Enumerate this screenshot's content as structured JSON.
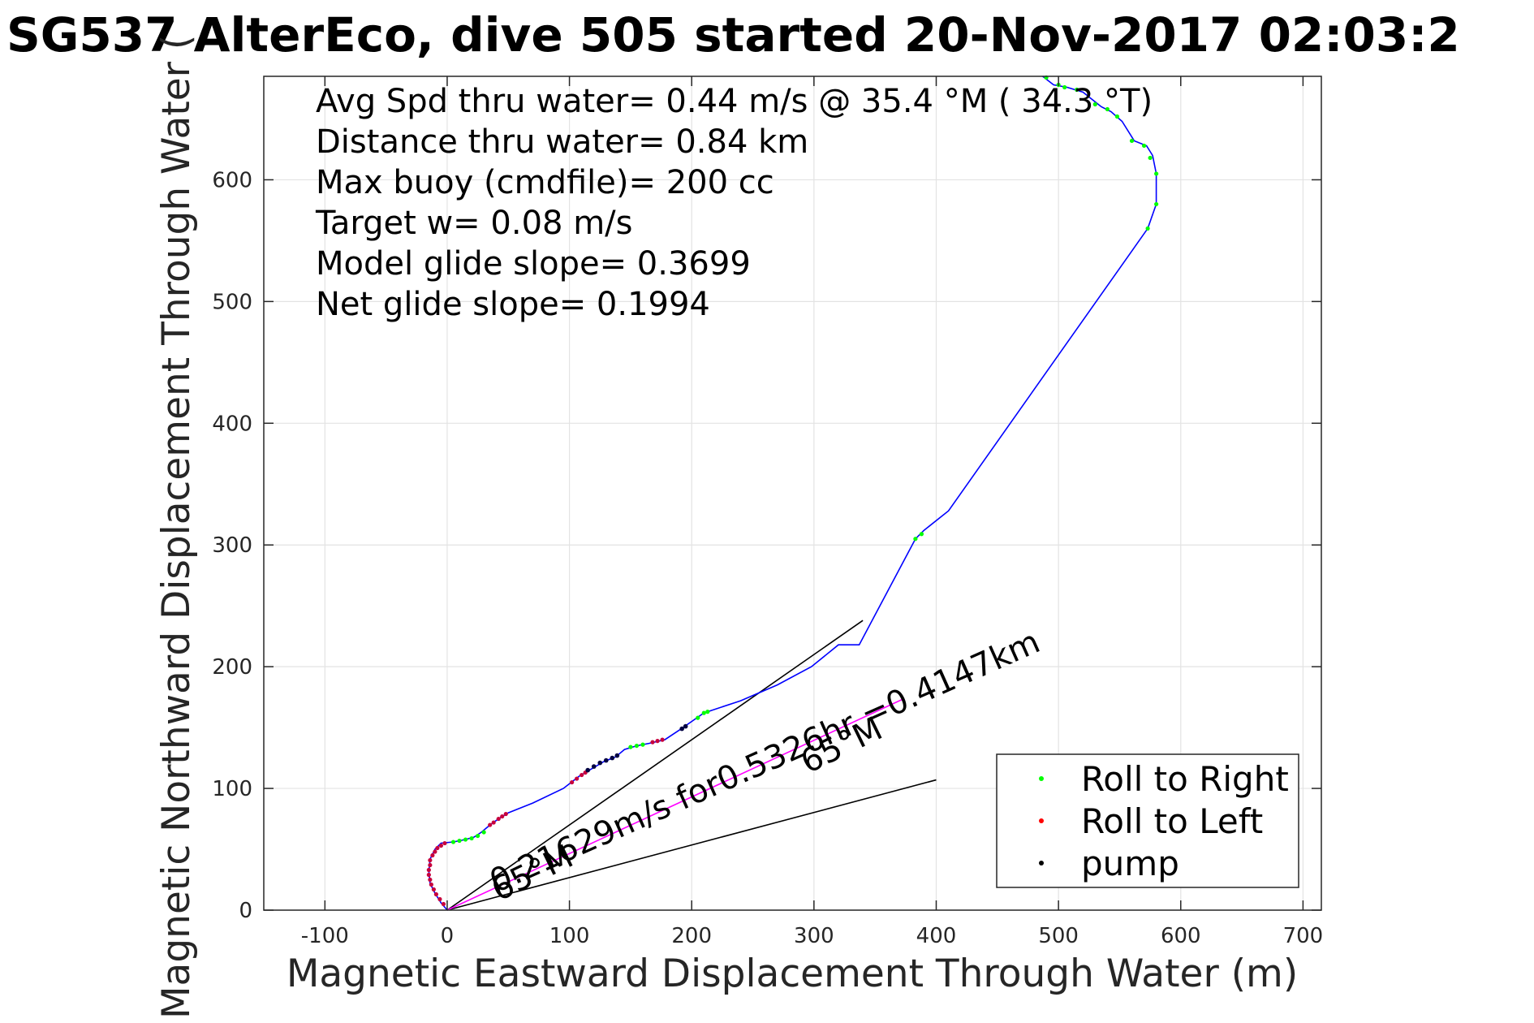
{
  "chart_data": {
    "type": "line",
    "title": "SG537 AlterEco, dive 505 started 20-Nov-2017 02:03:2",
    "xlabel": "Magnetic Eastward Displacement Through Water (m)",
    "ylabel": "Magnetic Northward Displacement Through Water (",
    "xlim": [
      -150,
      715
    ],
    "ylim": [
      0,
      685
    ],
    "x_ticks": [
      -100,
      0,
      100,
      200,
      300,
      400,
      500,
      600,
      700
    ],
    "y_ticks": [
      0,
      100,
      200,
      300,
      400,
      500,
      600
    ],
    "x_tick_labels": [
      "-100",
      "0",
      "100",
      "200",
      "300",
      "400",
      "500",
      "600",
      "700"
    ],
    "y_tick_labels": [
      "0",
      "100",
      "200",
      "300",
      "400",
      "500",
      "600"
    ],
    "grid": true,
    "legend_position": "bottom-right",
    "info_lines": [
      "Avg Spd thru water=  0.44 m/s @  35.4 °M ( 34.3 °T)",
      "Distance thru water=  0.84 km",
      "Max buoy (cmdfile)= 200 cc",
      "Target w= 0.08 m/s",
      "Model glide slope= 0.3699",
      "Net glide slope= 0.1994"
    ],
    "legend": [
      {
        "label": "Roll to Right",
        "color": "#00ff00"
      },
      {
        "label": "Roll to Left",
        "color": "#ff0000"
      },
      {
        "label": "pump",
        "color": "#000000"
      }
    ],
    "track": {
      "color": "#0000ff",
      "points": [
        [
          0,
          0
        ],
        [
          -5,
          6
        ],
        [
          -10,
          14
        ],
        [
          -14,
          22
        ],
        [
          -15,
          32
        ],
        [
          -14,
          42
        ],
        [
          -10,
          50
        ],
        [
          -5,
          55
        ],
        [
          5,
          56
        ],
        [
          15,
          58
        ],
        [
          22,
          60
        ],
        [
          28,
          64
        ],
        [
          35,
          70
        ],
        [
          42,
          75
        ],
        [
          50,
          80
        ],
        [
          70,
          88
        ],
        [
          95,
          100
        ],
        [
          108,
          110
        ],
        [
          118,
          116
        ],
        [
          128,
          122
        ],
        [
          138,
          126
        ],
        [
          145,
          132
        ],
        [
          155,
          135
        ],
        [
          165,
          137
        ],
        [
          178,
          140
        ],
        [
          190,
          148
        ],
        [
          200,
          155
        ],
        [
          210,
          162
        ],
        [
          240,
          172
        ],
        [
          270,
          185
        ],
        [
          298,
          200
        ],
        [
          320,
          218
        ],
        [
          337,
          218
        ],
        [
          383,
          305
        ],
        [
          390,
          312
        ],
        [
          410,
          328
        ],
        [
          573,
          560
        ],
        [
          580,
          580
        ],
        [
          580,
          605
        ],
        [
          577,
          620
        ],
        [
          572,
          628
        ],
        [
          562,
          632
        ],
        [
          552,
          648
        ],
        [
          543,
          656
        ],
        [
          535,
          660
        ],
        [
          520,
          672
        ],
        [
          507,
          676
        ],
        [
          496,
          678
        ],
        [
          487,
          685
        ]
      ]
    },
    "roll_right_points": [
      [
        5,
        56
      ],
      [
        10,
        57
      ],
      [
        15,
        58
      ],
      [
        20,
        59
      ],
      [
        25,
        61
      ],
      [
        30,
        64
      ],
      [
        150,
        134
      ],
      [
        155,
        135
      ],
      [
        160,
        136
      ],
      [
        205,
        158
      ],
      [
        210,
        162
      ],
      [
        213,
        163
      ],
      [
        383,
        305
      ],
      [
        388,
        309
      ],
      [
        530,
        662
      ],
      [
        540,
        658
      ],
      [
        548,
        652
      ],
      [
        560,
        632
      ],
      [
        570,
        628
      ],
      [
        575,
        618
      ],
      [
        580,
        605
      ],
      [
        580,
        580
      ],
      [
        573,
        560
      ],
      [
        490,
        684
      ],
      [
        500,
        678
      ],
      [
        505,
        676
      ],
      [
        515,
        674
      ]
    ],
    "roll_left_points": [
      [
        -3,
        5
      ],
      [
        -6,
        9
      ],
      [
        -9,
        13
      ],
      [
        -11,
        17
      ],
      [
        -13,
        21
      ],
      [
        -14,
        25
      ],
      [
        -15,
        29
      ],
      [
        -15,
        33
      ],
      [
        -14,
        37
      ],
      [
        -14,
        41
      ],
      [
        -12,
        45
      ],
      [
        -10,
        48
      ],
      [
        -8,
        51
      ],
      [
        -5,
        53
      ],
      [
        -2,
        55
      ],
      [
        35,
        70
      ],
      [
        38,
        72
      ],
      [
        42,
        75
      ],
      [
        45,
        77
      ],
      [
        48,
        79
      ],
      [
        102,
        105
      ],
      [
        106,
        108
      ],
      [
        110,
        111
      ],
      [
        113,
        113
      ],
      [
        168,
        138
      ],
      [
        172,
        139
      ],
      [
        176,
        140
      ]
    ],
    "pump_points": [
      [
        115,
        115
      ],
      [
        120,
        118
      ],
      [
        125,
        121
      ],
      [
        130,
        123
      ],
      [
        135,
        125
      ],
      [
        139,
        127
      ],
      [
        192,
        149
      ],
      [
        195,
        151
      ]
    ],
    "reference_lines": [
      {
        "from": [
          0,
          0
        ],
        "to": [
          340,
          238
        ],
        "color": "#000000"
      },
      {
        "from": [
          0,
          0
        ],
        "to": [
          400,
          107
        ],
        "color": "#000000"
      },
      {
        "from": [
          0,
          0
        ],
        "to": [
          372,
          173
        ],
        "color": "#ff00ff"
      }
    ],
    "annotations": [
      {
        "text": "0.21629m/s for0.5326hr =0.4147km",
        "x": 40,
        "y": 14,
        "rotate": -24
      },
      {
        "text": "65°M",
        "x": 42,
        "y": 7,
        "rotate": -26
      },
      {
        "text": "65°M",
        "x": 295,
        "y": 112,
        "rotate": -26
      }
    ]
  }
}
